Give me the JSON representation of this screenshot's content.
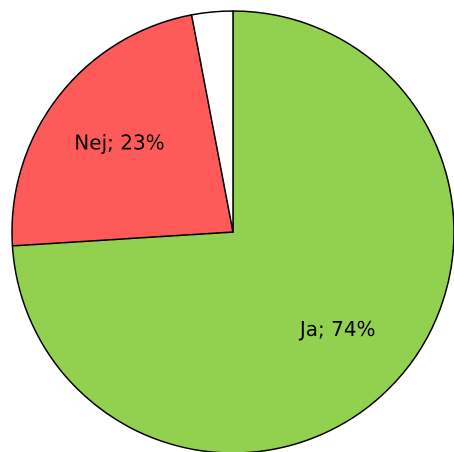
{
  "chart_data": {
    "type": "pie",
    "categories": [
      "Ja",
      "Nej",
      null
    ],
    "values": [
      74,
      23,
      3
    ],
    "value_labels": [
      "Ja; 74%",
      "Nej; 23%",
      null
    ],
    "colors": [
      "#92d050",
      "#ff5a5a",
      "#ffffff"
    ]
  }
}
